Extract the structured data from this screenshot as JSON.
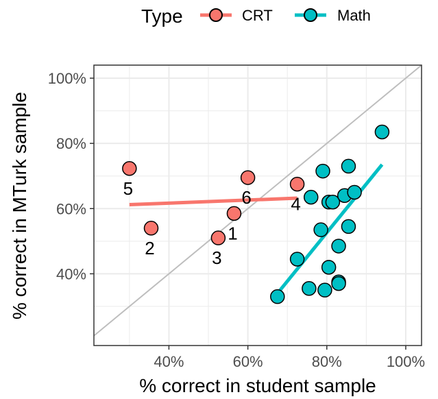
{
  "chart_data": {
    "type": "scatter",
    "xlabel": "% correct in student sample",
    "ylabel": "% correct in MTurk sample",
    "xlim": [
      21,
      104
    ],
    "ylim": [
      18,
      104
    ],
    "x_ticks": [
      40,
      60,
      80,
      100
    ],
    "y_ticks": [
      40,
      60,
      80,
      100
    ],
    "x_tick_labels": [
      "40%",
      "60%",
      "80%",
      "100%"
    ],
    "y_tick_labels": [
      "40%",
      "60%",
      "80%",
      "100%"
    ],
    "grid": true,
    "reference_line": "y = x",
    "legend": {
      "title": "Type",
      "position": "top",
      "entries": [
        "CRT",
        "Math"
      ]
    },
    "colors": {
      "CRT": "#F8766D",
      "Math": "#00BFC4",
      "reference": "#bebebe",
      "grid": "#ebebeb",
      "panel_border": "#333333"
    },
    "series": [
      {
        "name": "CRT",
        "points": [
          {
            "x": 56.5,
            "y": 58.5,
            "label": "1"
          },
          {
            "x": 35.5,
            "y": 54.0,
            "label": "2"
          },
          {
            "x": 52.5,
            "y": 51.0,
            "label": "3"
          },
          {
            "x": 72.5,
            "y": 67.5,
            "label": "4"
          },
          {
            "x": 30.0,
            "y": 72.3,
            "label": "5"
          },
          {
            "x": 60.0,
            "y": 69.5,
            "label": "6"
          }
        ],
        "fit": {
          "x": [
            30.0,
            72.5
          ],
          "y": [
            61.2,
            63.2
          ]
        }
      },
      {
        "name": "Math",
        "points": [
          {
            "x": 94.0,
            "y": 83.5
          },
          {
            "x": 85.5,
            "y": 73.0
          },
          {
            "x": 79.0,
            "y": 71.5
          },
          {
            "x": 76.0,
            "y": 63.5
          },
          {
            "x": 80.5,
            "y": 62.0
          },
          {
            "x": 81.5,
            "y": 62.0
          },
          {
            "x": 84.5,
            "y": 64.0
          },
          {
            "x": 87.0,
            "y": 65.0
          },
          {
            "x": 78.5,
            "y": 53.5
          },
          {
            "x": 85.5,
            "y": 54.5
          },
          {
            "x": 83.0,
            "y": 48.5
          },
          {
            "x": 72.5,
            "y": 44.5
          },
          {
            "x": 80.5,
            "y": 42.0
          },
          {
            "x": 83.0,
            "y": 37.5
          },
          {
            "x": 83.0,
            "y": 37.0
          },
          {
            "x": 75.5,
            "y": 35.5
          },
          {
            "x": 79.5,
            "y": 35.0
          },
          {
            "x": 67.5,
            "y": 33.0
          }
        ],
        "fit": {
          "x": [
            67.5,
            94.0
          ],
          "y": [
            34.0,
            73.5
          ]
        }
      }
    ]
  }
}
